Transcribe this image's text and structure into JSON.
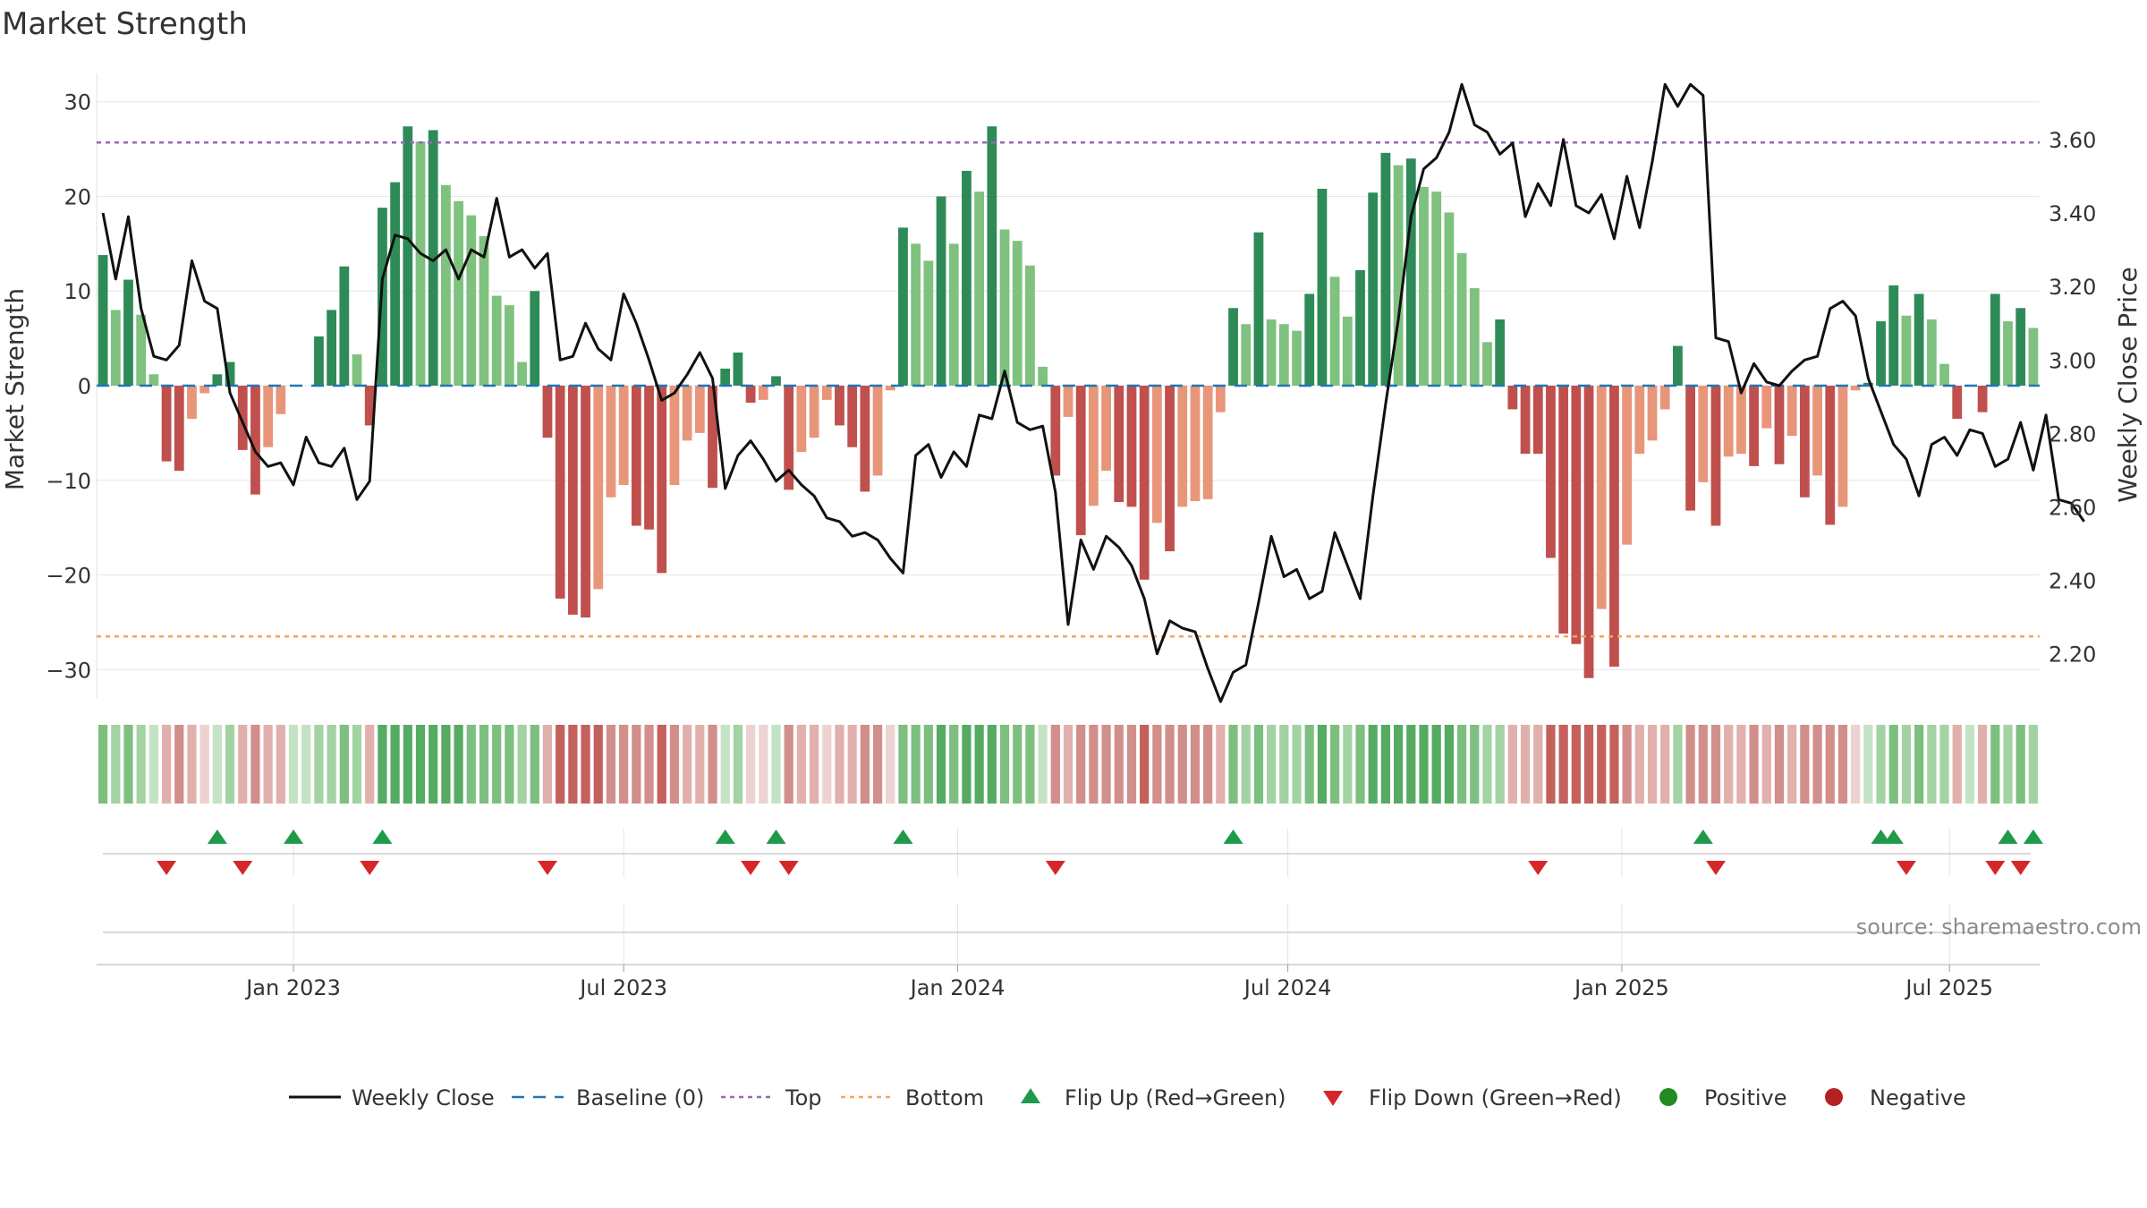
{
  "chart_data": {
    "type": "bar+line",
    "title": "Market Strength",
    "ylabel_left": "Market Strength",
    "ylabel_right": "Weekly Close Price",
    "ylim_left": [
      -33,
      33
    ],
    "ylim_right": [
      2.08,
      3.78
    ],
    "yticks_left": [
      30,
      20,
      10,
      0,
      -10,
      -20,
      -30
    ],
    "yticks_left_labels": [
      "30",
      "20",
      "10",
      "0",
      "−10",
      "−20",
      "−30"
    ],
    "yticks_right": [
      3.6,
      3.4,
      3.2,
      3.0,
      2.8,
      2.6,
      2.4,
      2.2
    ],
    "yticks_right_labels": [
      "3.60",
      "3.40",
      "3.20",
      "3.00",
      "2.80",
      "2.60",
      "2.40",
      "2.20"
    ],
    "x_week_start": -15,
    "x_week_end": 142,
    "xticks": [
      {
        "label": "Jan 2023",
        "week": 0
      },
      {
        "label": "Jul 2023",
        "week": 26
      },
      {
        "label": "Jan 2024",
        "week": 52.3
      },
      {
        "label": "Jul 2024",
        "week": 78.3
      },
      {
        "label": "Jan 2025",
        "week": 104.6
      },
      {
        "label": "Jul 2025",
        "week": 130.4
      }
    ],
    "top_level": 25.7,
    "bottom_level": -26.5,
    "baseline": 0,
    "strength": [
      13.8,
      8,
      11.2,
      7.5,
      1.2,
      -8,
      -9,
      -3.5,
      -0.8,
      1.2,
      2.5,
      -6.8,
      -11.5,
      -6.5,
      -3,
      0,
      0,
      5.2,
      8,
      12.6,
      3.3,
      -4.2,
      18.8,
      21.5,
      27.4,
      25.8,
      27,
      21.2,
      19.5,
      18,
      15.8,
      9.5,
      8.5,
      2.5,
      10,
      -5.5,
      -22.5,
      -24.2,
      -24.5,
      -21.5,
      -11.8,
      -10.5,
      -14.8,
      -15.2,
      -19.8,
      -10.5,
      -5.8,
      -5,
      -10.8,
      1.8,
      3.5,
      -1.8,
      -1.5,
      1,
      -11,
      -7,
      -5.5,
      -1.5,
      -4.2,
      -6.5,
      -11.2,
      -9.5,
      -0.5,
      16.7,
      15,
      13.2,
      20,
      15,
      22.7,
      20.5,
      27.4,
      16.5,
      15.3,
      12.7,
      2,
      -9.5,
      -3.3,
      -15.8,
      -12.7,
      -9,
      -12.3,
      -12.8,
      -20.5,
      -14.5,
      -17.5,
      -12.8,
      -12.2,
      -12,
      -2.8,
      8.2,
      6.5,
      16.2,
      7,
      6.5,
      5.8,
      9.7,
      20.8,
      11.5,
      7.3,
      12.2,
      20.4,
      24.6,
      23.3,
      24,
      21,
      20.5,
      18.3,
      14,
      10.3,
      4.6,
      7,
      -2.5,
      -7.2,
      -7.2,
      -18.2,
      -26.2,
      -27.3,
      -30.9,
      -23.6,
      -29.7,
      -16.8,
      -7.2,
      -5.8,
      -2.5,
      4.2,
      -13.2,
      -10.2,
      -14.8,
      -7.5,
      -7.2,
      -8.5,
      -4.5,
      -8.3,
      -5.3,
      -11.8,
      -9.5,
      -14.7,
      -12.8,
      -0.5,
      0.3,
      6.8,
      10.6,
      7.4,
      9.7,
      7,
      2.3,
      -3.5,
      0,
      -2.8,
      9.7,
      6.8,
      8.2,
      6.1
    ],
    "close": [
      3.4,
      3.22,
      3.39,
      3.14,
      3.01,
      3,
      3.04,
      3.27,
      3.16,
      3.14,
      2.91,
      2.83,
      2.75,
      2.71,
      2.72,
      2.66,
      2.79,
      2.72,
      2.71,
      2.76,
      2.62,
      2.67,
      3.22,
      3.34,
      3.33,
      3.29,
      3.27,
      3.3,
      3.22,
      3.3,
      3.28,
      3.44,
      3.28,
      3.3,
      3.25,
      3.29,
      3,
      3.01,
      3.1,
      3.03,
      3,
      3.18,
      3.1,
      3,
      2.89,
      2.91,
      2.96,
      3.02,
      2.95,
      2.65,
      2.74,
      2.78,
      2.73,
      2.67,
      2.7,
      2.66,
      2.63,
      2.57,
      2.56,
      2.52,
      2.53,
      2.51,
      2.46,
      2.42,
      2.74,
      2.77,
      2.68,
      2.75,
      2.71,
      2.85,
      2.84,
      2.97,
      2.83,
      2.81,
      2.82,
      2.64,
      2.28,
      2.51,
      2.43,
      2.52,
      2.49,
      2.44,
      2.35,
      2.2,
      2.29,
      2.27,
      2.26,
      2.16,
      2.07,
      2.15,
      2.17,
      2.34,
      2.52,
      2.41,
      2.43,
      2.35,
      2.37,
      2.53,
      2.44,
      2.35,
      2.63,
      2.88,
      3.11,
      3.39,
      3.52,
      3.55,
      3.62,
      3.75,
      3.64,
      3.62,
      3.56,
      3.59,
      3.39,
      3.48,
      3.42,
      3.6,
      3.42,
      3.4,
      3.45,
      3.33,
      3.5,
      3.36,
      3.54,
      3.75,
      3.69,
      3.75,
      3.72,
      3.06,
      3.05,
      2.91,
      2.99,
      2.94,
      2.93,
      2.97,
      3,
      3.01,
      3.14,
      3.16,
      3.12,
      2.95,
      2.86,
      2.77,
      2.73,
      2.63,
      2.77,
      2.79,
      2.74,
      2.81,
      2.8,
      2.71,
      2.73,
      2.83,
      2.7,
      2.85,
      2.62,
      2.61,
      2.56
    ],
    "flip_up_weeks": [
      -6,
      0,
      7,
      34,
      38,
      48,
      74,
      111,
      125,
      126,
      135,
      137
    ],
    "flip_down_weeks": [
      -10,
      -4,
      6,
      20,
      36,
      39,
      60,
      98,
      112,
      127,
      134,
      136
    ],
    "legend": [
      "Weekly Close",
      "Baseline (0)",
      "Top",
      "Bottom",
      "Flip Up (Red→Green)",
      "Flip Down (Green→Red)",
      "Positive",
      "Negative"
    ],
    "legend_placement": "bottom-center",
    "source": "source: sharemaestro.com"
  },
  "colors": {
    "pos_strong": "#2e8b57",
    "pos_light": "#7fc17f",
    "neg_strong": "#c0504d",
    "neg_light": "#e8967a",
    "line": "#111111",
    "top": "#9467bd",
    "bottom": "#f4a460",
    "baseline": "#1f77b4",
    "flip_up": "#1f9a4a",
    "flip_down": "#d62728",
    "positive": "#228b22",
    "negative": "#b22222",
    "grid": "#e6e6e6",
    "axis": "#cccccc"
  }
}
